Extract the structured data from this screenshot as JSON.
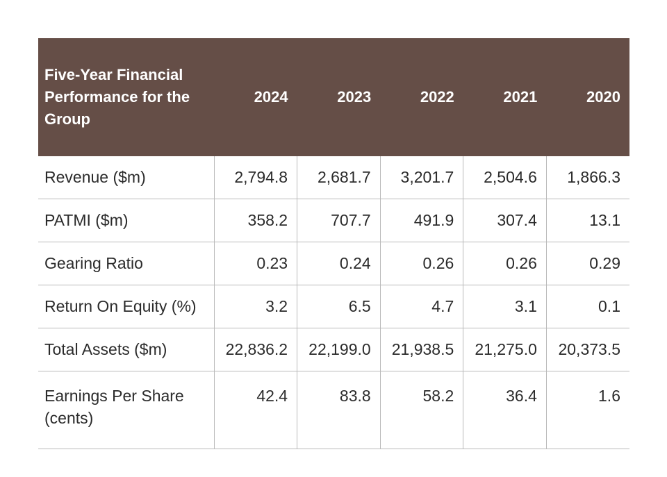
{
  "table": {
    "header": {
      "title": "Five-Year Financial Performance for the Group",
      "years": [
        "2024",
        "2023",
        "2022",
        "2021",
        "2020"
      ]
    },
    "rows": [
      {
        "label": "Revenue ($m)",
        "values": [
          "2,794.8",
          "2,681.7",
          "3,201.7",
          "2,504.6",
          "1,866.3"
        ]
      },
      {
        "label": "PATMI ($m)",
        "values": [
          "358.2",
          "707.7",
          "491.9",
          "307.4",
          "13.1"
        ]
      },
      {
        "label": "Gearing Ratio",
        "values": [
          "0.23",
          "0.24",
          "0.26",
          "0.26",
          "0.29"
        ]
      },
      {
        "label": "Return On Equity (%)",
        "values": [
          "3.2",
          "6.5",
          "4.7",
          "3.1",
          "0.1"
        ]
      },
      {
        "label": "Total Assets ($m)",
        "values": [
          "22,836.2",
          "22,199.0",
          "21,938.5",
          "21,275.0",
          "20,373.5"
        ]
      },
      {
        "label": "Earnings Per Share (cents)",
        "values": [
          "42.4",
          "83.8",
          "58.2",
          "36.4",
          "1.6"
        ]
      }
    ],
    "colors": {
      "header_bg": "#654e47",
      "header_text": "#ffffff",
      "grid": "#b9b9b9",
      "body_text": "#2b2b2b"
    }
  }
}
